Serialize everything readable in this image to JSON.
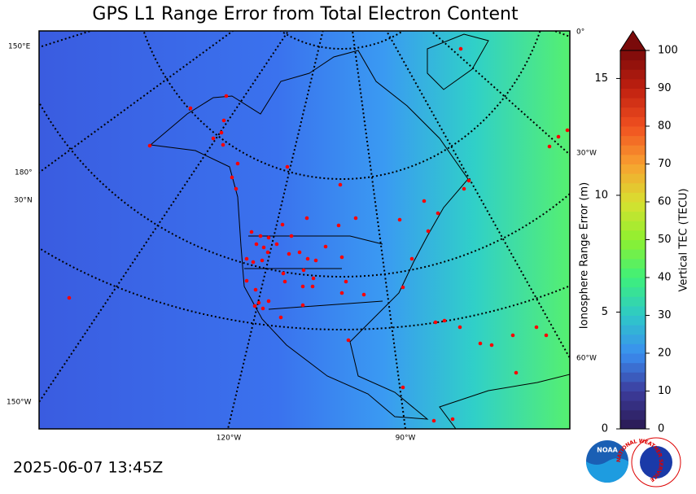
{
  "title": "GPS L1 Range Error from Total Electron Content",
  "timestamp": "2025-06-07 13:45Z",
  "map_labels": {
    "lon_150e": "150°E",
    "lon_180": "180°",
    "lat_30n": "30°N",
    "lon_150w": "150°W",
    "lon_120w": "120°W",
    "lon_90w": "90°W",
    "lon_0": "0°",
    "lon_30w": "30°W",
    "lon_60w": "60°W"
  },
  "colorbar": {
    "label": "Vertical TEC (TECU)",
    "vlim": [
      0,
      100
    ],
    "ticks": [
      0,
      10,
      20,
      30,
      40,
      50,
      60,
      70,
      80,
      90,
      100
    ],
    "range_error": {
      "label": "Ionosphere Range Error (m)",
      "lim": [
        0,
        16.2
      ],
      "ticks": [
        0,
        5,
        10,
        15
      ]
    }
  },
  "logos": {
    "noaa": "NOAA",
    "nws": "NATIONAL WEATHER SERVICE"
  }
}
